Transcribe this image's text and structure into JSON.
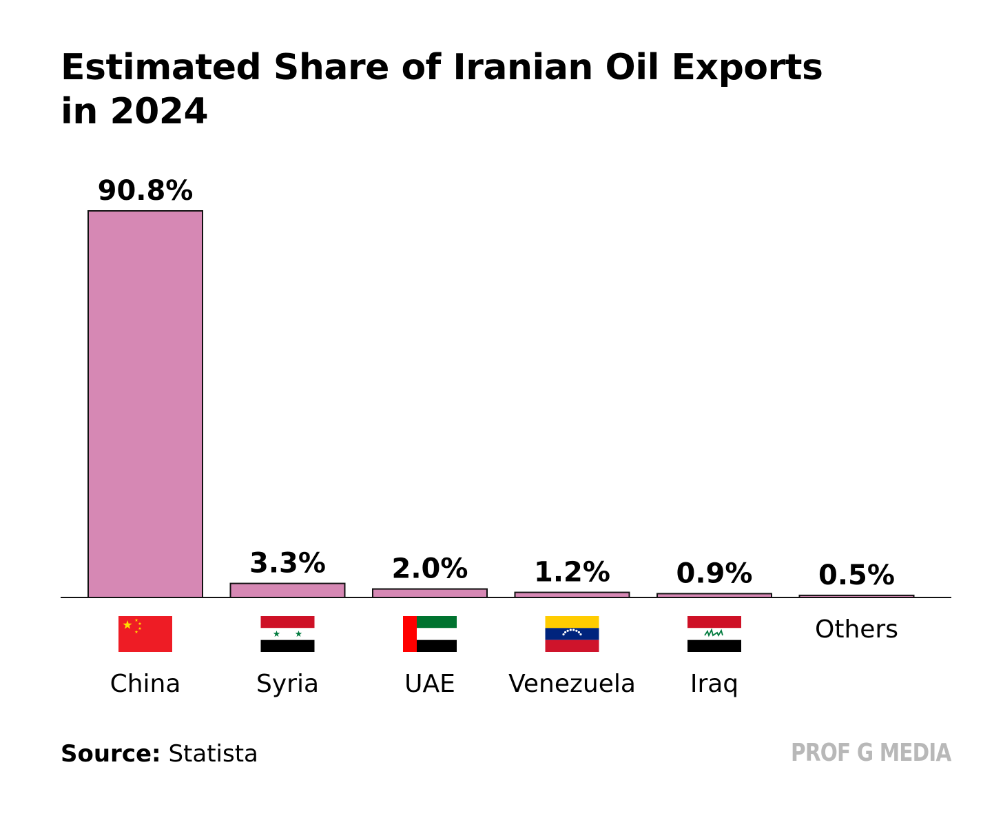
{
  "title_lines": [
    "Estimated Share of Iranian Oil Exports",
    "in 2024"
  ],
  "source": {
    "label": "Source:",
    "value": "Statista"
  },
  "brand": "PROF G MEDIA",
  "colors": {
    "bar_fill": "#d688b4",
    "bar_stroke": "#111111",
    "axis": "#111111"
  },
  "chart_data": {
    "type": "bar",
    "title": "Estimated Share of Iranian Oil Exports in 2024",
    "xlabel": "",
    "ylabel": "",
    "ylim": [
      0,
      90.8
    ],
    "grid": false,
    "categories": [
      "China",
      "Syria",
      "UAE",
      "Venezuela",
      "Iraq",
      "Others"
    ],
    "values": [
      90.8,
      3.3,
      2.0,
      1.2,
      0.9,
      0.5
    ],
    "value_labels": [
      "90.8%",
      "3.3%",
      "2.0%",
      "1.2%",
      "0.9%",
      "0.5%"
    ],
    "flags": [
      "china-flag",
      "syria-flag",
      "uae-flag",
      "venezuela-flag",
      "iraq-flag",
      null
    ]
  }
}
